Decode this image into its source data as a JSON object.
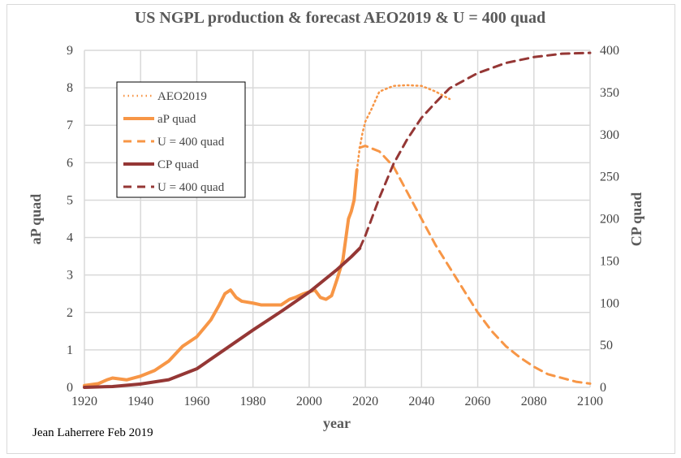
{
  "chart_data": {
    "type": "line",
    "title": "US NGPL production & forecast AEO2019 & U = 400 quad",
    "xlabel": "year",
    "ylabel": "aP quad",
    "y2label": "CP quad",
    "xlim": [
      1920,
      2100
    ],
    "ylim": [
      0,
      9
    ],
    "y2lim": [
      0,
      400
    ],
    "xticks": [
      1920,
      1940,
      1960,
      1980,
      2000,
      2020,
      2040,
      2060,
      2080,
      2100
    ],
    "yticks": [
      0,
      1,
      2,
      3,
      4,
      5,
      6,
      7,
      8,
      9
    ],
    "y2ticks": [
      0,
      50,
      100,
      150,
      200,
      250,
      300,
      350,
      400
    ],
    "grid": true,
    "legend_position": "top-left",
    "credit": "Jean Laherrere Feb 2019",
    "series": [
      {
        "name": "AEO2019",
        "axis": "left",
        "style": "dotted",
        "color": "#f79646",
        "x": [
          2017,
          2018,
          2019,
          2020,
          2022,
          2025,
          2030,
          2035,
          2040,
          2045,
          2050
        ],
        "y": [
          5.8,
          6.4,
          6.8,
          7.1,
          7.4,
          7.9,
          8.05,
          8.07,
          8.05,
          7.9,
          7.7
        ]
      },
      {
        "name": "aP quad",
        "axis": "left",
        "style": "solid",
        "color": "#f79646",
        "x": [
          1920,
          1925,
          1928,
          1930,
          1935,
          1940,
          1945,
          1950,
          1955,
          1958,
          1960,
          1965,
          1968,
          1970,
          1972,
          1974,
          1976,
          1980,
          1983,
          1985,
          1990,
          1993,
          1995,
          1998,
          2000,
          2002,
          2004,
          2006,
          2008,
          2010,
          2012,
          2014,
          2015,
          2016,
          2017
        ],
        "y": [
          0.05,
          0.1,
          0.2,
          0.25,
          0.2,
          0.3,
          0.45,
          0.7,
          1.1,
          1.25,
          1.35,
          1.8,
          2.2,
          2.5,
          2.6,
          2.4,
          2.3,
          2.25,
          2.2,
          2.2,
          2.2,
          2.35,
          2.4,
          2.5,
          2.55,
          2.6,
          2.4,
          2.35,
          2.45,
          2.9,
          3.4,
          4.5,
          4.7,
          5.0,
          5.8
        ]
      },
      {
        "name": "U = 400 quad",
        "axis": "left",
        "style": "dashed",
        "color": "#f79646",
        "x": [
          2018,
          2020,
          2025,
          2030,
          2035,
          2040,
          2045,
          2050,
          2055,
          2060,
          2065,
          2070,
          2075,
          2080,
          2085,
          2090,
          2095,
          2100
        ],
        "y": [
          6.4,
          6.45,
          6.3,
          5.9,
          5.2,
          4.5,
          3.8,
          3.2,
          2.6,
          2.0,
          1.5,
          1.1,
          0.8,
          0.55,
          0.35,
          0.25,
          0.15,
          0.1
        ]
      },
      {
        "name": "CP quad",
        "axis": "right",
        "style": "solid",
        "color": "#953735",
        "x": [
          1920,
          1930,
          1940,
          1950,
          1960,
          1970,
          1980,
          1990,
          2000,
          2010,
          2015,
          2018
        ],
        "y": [
          0,
          1,
          4,
          9,
          22,
          45,
          68,
          90,
          113,
          140,
          155,
          165
        ]
      },
      {
        "name": "U = 400 quad",
        "axis": "right",
        "style": "dashed",
        "color": "#953735",
        "x": [
          2018,
          2020,
          2025,
          2030,
          2035,
          2040,
          2045,
          2050,
          2060,
          2070,
          2080,
          2090,
          2100
        ],
        "y": [
          165,
          180,
          225,
          265,
          295,
          320,
          338,
          355,
          373,
          385,
          392,
          396,
          397
        ]
      }
    ]
  }
}
